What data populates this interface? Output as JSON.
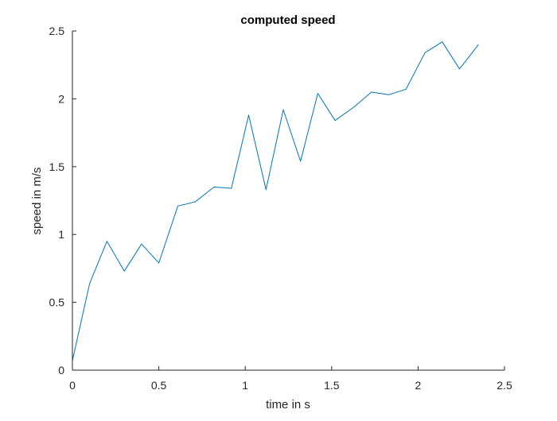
{
  "chart_data": {
    "type": "line",
    "title": "computed speed",
    "xlabel": "time in s",
    "ylabel": "speed in m/s",
    "xlim": [
      0,
      2.5
    ],
    "ylim": [
      0,
      2.5
    ],
    "grid": false,
    "x_ticks": [
      "0",
      "0.5",
      "1",
      "1.5",
      "2",
      "2.5"
    ],
    "y_ticks": [
      "0",
      "0.5",
      "1",
      "1.5",
      "2",
      "2.5"
    ],
    "series": [
      {
        "color": "#0072bd",
        "x": [
          0,
          0.1,
          0.2,
          0.3,
          0.4,
          0.5,
          0.61,
          0.71,
          0.82,
          0.92,
          1.02,
          1.12,
          1.22,
          1.32,
          1.42,
          1.52,
          1.63,
          1.73,
          1.83,
          1.93,
          2.04,
          2.14,
          2.24,
          2.35
        ],
        "y": [
          0.07,
          0.64,
          0.95,
          0.73,
          0.93,
          0.79,
          1.21,
          1.24,
          1.35,
          1.34,
          1.88,
          1.33,
          1.92,
          1.54,
          2.04,
          1.84,
          1.94,
          2.05,
          2.03,
          2.07,
          2.34,
          2.42,
          2.22,
          2.4
        ]
      }
    ]
  }
}
